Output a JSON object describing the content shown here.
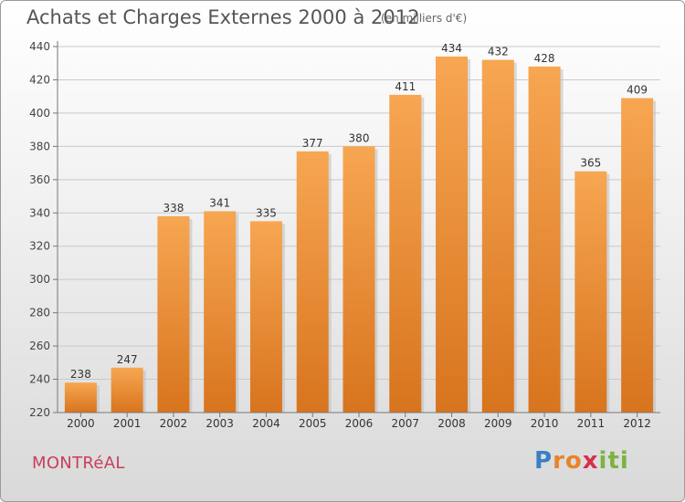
{
  "header": {
    "title": "Achats et Charges Externes 2000 à 2012",
    "subtitle": "(en milliers d'€)"
  },
  "footer": {
    "city": "MONTRéAL",
    "brand_letters": [
      {
        "ch": "P",
        "color": "#3a7fc4"
      },
      {
        "ch": "r",
        "color": "#e8832a"
      },
      {
        "ch": "o",
        "color": "#e8832a"
      },
      {
        "ch": "x",
        "color": "#d6304b"
      },
      {
        "ch": "i",
        "color": "#7cb342"
      },
      {
        "ch": "t",
        "color": "#7cb342"
      },
      {
        "ch": "i",
        "color": "#7cb342"
      }
    ]
  },
  "chart_data": {
    "type": "bar",
    "categories": [
      "2000",
      "2001",
      "2002",
      "2003",
      "2004",
      "2005",
      "2006",
      "2007",
      "2008",
      "2009",
      "2010",
      "2011",
      "2012"
    ],
    "values": [
      238,
      247,
      338,
      341,
      335,
      377,
      380,
      411,
      434,
      432,
      428,
      365,
      409
    ],
    "ylim": [
      220,
      440
    ],
    "yticks": [
      220,
      240,
      260,
      280,
      300,
      320,
      340,
      360,
      380,
      400,
      420,
      440
    ],
    "grid": true,
    "bar_color_top": "#f7a652",
    "bar_color_bottom": "#d8741e"
  }
}
